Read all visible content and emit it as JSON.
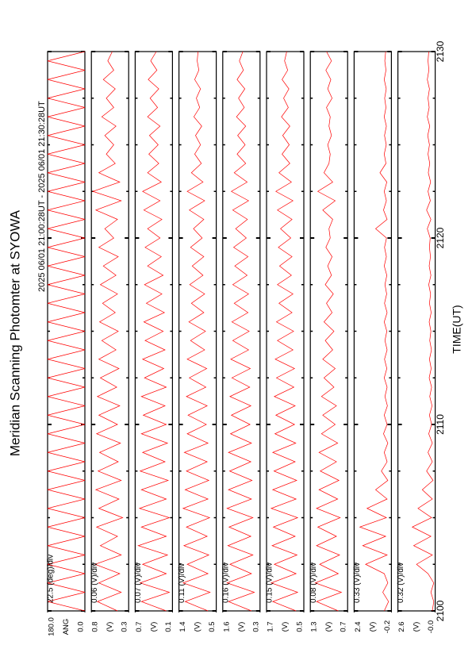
{
  "chart_data": {
    "type": "line",
    "title": "Meridian Scanning Photomter at SYOWA",
    "subtitle": "2025 06/01 21:00:28UT - 2025 06/01 21:30:28UT",
    "x_label": "TIME(UT)",
    "xlim": [
      2100,
      2130
    ],
    "xticks": [
      2100,
      2110,
      2120,
      2130
    ],
    "xminorticks": [
      2102.5,
      2105,
      2107.5,
      2112.5,
      2115,
      2117.5,
      2122.5,
      2125,
      2127.5
    ],
    "x": [
      2100,
      2100.5,
      2101,
      2101.5,
      2102,
      2102.5,
      2103,
      2103.5,
      2104,
      2104.5,
      2105,
      2105.5,
      2106,
      2106.5,
      2107,
      2107.5,
      2108,
      2108.5,
      2109,
      2109.5,
      2110,
      2110.5,
      2111,
      2111.5,
      2112,
      2112.5,
      2113,
      2113.5,
      2114,
      2114.5,
      2115,
      2115.5,
      2116,
      2116.5,
      2117,
      2117.5,
      2118,
      2118.5,
      2119,
      2119.5,
      2120,
      2120.5,
      2121,
      2121.5,
      2122,
      2122.5,
      2123,
      2123.5,
      2124,
      2124.5,
      2125,
      2125.5,
      2126,
      2126.5,
      2127,
      2127.5,
      2128,
      2128.5,
      2129,
      2129.5,
      2130
    ],
    "series": [
      {
        "unit": "ANG",
        "scale": "22.5 (deg)/div",
        "color": "#ff0000",
        "ylim": [
          0,
          180
        ],
        "yticks": [
          {
            "value": 180,
            "label": "180.0"
          },
          {
            "value": 0,
            "label": "0.0"
          }
        ],
        "values": [
          0,
          180,
          0,
          180,
          0,
          180,
          0,
          180,
          0,
          180,
          0,
          180,
          0,
          180,
          0,
          180,
          0,
          180,
          0,
          180,
          0,
          180,
          0,
          180,
          0,
          180,
          0,
          180,
          0,
          180,
          0,
          180,
          0,
          180,
          0,
          180,
          0,
          180,
          0,
          180,
          0,
          180,
          0,
          180,
          0,
          180,
          0,
          180,
          0,
          180,
          0,
          180,
          0,
          180,
          0,
          180,
          0,
          180,
          0,
          180,
          0
        ]
      },
      {
        "unit": "(V)",
        "scale": "0.06 (V)/div",
        "color": "#ff0000",
        "ylim": [
          0.3,
          0.8
        ],
        "yticks": [
          0.8,
          0.3
        ],
        "values": [
          0.45,
          0.72,
          0.4,
          0.7,
          0.42,
          0.75,
          0.4,
          0.68,
          0.45,
          0.73,
          0.38,
          0.7,
          0.43,
          0.74,
          0.4,
          0.71,
          0.44,
          0.69,
          0.41,
          0.73,
          0.45,
          0.7,
          0.42,
          0.72,
          0.46,
          0.68,
          0.43,
          0.7,
          0.47,
          0.66,
          0.44,
          0.69,
          0.48,
          0.65,
          0.45,
          0.68,
          0.47,
          0.64,
          0.44,
          0.7,
          0.5,
          0.62,
          0.45,
          0.74,
          0.4,
          0.78,
          0.42,
          0.7,
          0.48,
          0.6,
          0.5,
          0.62,
          0.47,
          0.66,
          0.5,
          0.6,
          0.48,
          0.64,
          0.5,
          0.58,
          0.52
        ]
      },
      {
        "unit": "(V)",
        "scale": "0.07 (V)/div",
        "color": "#ff0000",
        "ylim": [
          0.1,
          0.7
        ],
        "yticks": [
          0.7,
          0.1
        ],
        "values": [
          0.2,
          0.6,
          0.15,
          0.62,
          0.2,
          0.58,
          0.18,
          0.65,
          0.2,
          0.6,
          0.15,
          0.63,
          0.2,
          0.6,
          0.17,
          0.62,
          0.22,
          0.58,
          0.18,
          0.6,
          0.2,
          0.57,
          0.22,
          0.6,
          0.2,
          0.55,
          0.24,
          0.58,
          0.22,
          0.54,
          0.25,
          0.56,
          0.23,
          0.52,
          0.27,
          0.55,
          0.25,
          0.5,
          0.28,
          0.54,
          0.3,
          0.5,
          0.27,
          0.56,
          0.3,
          0.58,
          0.28,
          0.5,
          0.32,
          0.48,
          0.33,
          0.47,
          0.3,
          0.5,
          0.34,
          0.46,
          0.32,
          0.49,
          0.35,
          0.45,
          0.36
        ]
      },
      {
        "unit": "(V)",
        "scale": "0.11 (V)/div",
        "color": "#ff0000",
        "ylim": [
          0.5,
          1.4
        ],
        "yticks": [
          1.4,
          0.5
        ],
        "values": [
          0.7,
          1.25,
          0.65,
          1.3,
          0.7,
          1.2,
          0.68,
          1.28,
          0.72,
          1.22,
          0.66,
          1.3,
          0.7,
          1.25,
          0.68,
          1.22,
          0.72,
          1.27,
          0.7,
          1.2,
          0.74,
          1.18,
          0.72,
          1.22,
          0.75,
          1.15,
          0.73,
          1.2,
          0.78,
          1.12,
          0.76,
          1.16,
          0.8,
          1.1,
          0.78,
          1.14,
          0.82,
          1.08,
          0.8,
          1.12,
          0.84,
          1.05,
          0.8,
          1.15,
          0.78,
          1.2,
          0.82,
          1.1,
          0.86,
          1.02,
          0.88,
          1.0,
          0.85,
          1.04,
          0.9,
          0.98,
          0.88,
          1.02,
          0.92,
          0.96,
          0.94
        ]
      },
      {
        "unit": "(V)",
        "scale": "0.16 (V)/div",
        "color": "#ff0000",
        "ylim": [
          0.3,
          1.6
        ],
        "yticks": [
          1.6,
          0.3
        ],
        "values": [
          0.6,
          1.4,
          0.5,
          1.45,
          0.6,
          1.35,
          0.55,
          1.42,
          0.62,
          1.38,
          0.55,
          1.45,
          0.6,
          1.4,
          0.58,
          1.36,
          0.62,
          1.4,
          0.6,
          1.33,
          0.65,
          1.3,
          0.62,
          1.35,
          0.66,
          1.28,
          0.64,
          1.32,
          0.7,
          1.25,
          0.68,
          1.28,
          0.72,
          1.2,
          0.7,
          1.25,
          0.75,
          1.18,
          0.72,
          1.22,
          0.78,
          1.15,
          0.74,
          1.25,
          0.7,
          1.3,
          0.75,
          1.2,
          0.8,
          1.1,
          0.82,
          1.08,
          0.8,
          1.12,
          0.85,
          1.05,
          0.83,
          1.1,
          0.88,
          1.02,
          0.9
        ]
      },
      {
        "unit": "(V)",
        "scale": "0.15 (V)/div",
        "color": "#ff0000",
        "ylim": [
          0.5,
          1.7
        ],
        "yticks": [
          1.7,
          0.5
        ],
        "values": [
          0.75,
          1.5,
          0.7,
          1.55,
          0.75,
          1.45,
          0.72,
          1.52,
          0.78,
          1.48,
          0.7,
          1.55,
          0.75,
          1.5,
          0.73,
          1.46,
          0.78,
          1.5,
          0.76,
          1.43,
          0.8,
          1.4,
          0.78,
          1.45,
          0.82,
          1.38,
          0.8,
          1.42,
          0.85,
          1.35,
          0.83,
          1.38,
          0.88,
          1.3,
          0.85,
          1.35,
          0.9,
          1.28,
          0.88,
          1.32,
          0.92,
          1.25,
          0.88,
          1.35,
          0.85,
          1.4,
          0.9,
          1.3,
          0.95,
          1.2,
          0.97,
          1.18,
          0.95,
          1.22,
          1.0,
          1.15,
          0.98,
          1.2,
          1.02,
          1.12,
          1.05
        ]
      },
      {
        "unit": "(V)",
        "scale": "0.08 (V)/div",
        "color": "#ff0000",
        "ylim": [
          0.7,
          1.3
        ],
        "yticks": [
          1.3,
          0.7
        ],
        "values": [
          0.85,
          1.2,
          0.8,
          1.22,
          0.85,
          1.15,
          0.83,
          1.2,
          0.88,
          1.18,
          0.82,
          1.2,
          0.86,
          1.16,
          0.84,
          1.14,
          0.88,
          1.16,
          0.86,
          1.12,
          0.9,
          1.1,
          0.88,
          1.12,
          0.92,
          1.08,
          0.9,
          1.1,
          0.94,
          1.06,
          0.92,
          1.08,
          0.95,
          1.04,
          0.93,
          1.06,
          0.96,
          1.02,
          0.95,
          1.05,
          0.98,
          1.0,
          0.94,
          1.1,
          0.9,
          1.18,
          0.94,
          1.08,
          1.0,
          0.98,
          1.02,
          0.96,
          1.0,
          0.98,
          1.04,
          0.95,
          1.02,
          0.97,
          1.05,
          0.96,
          1.04
        ]
      },
      {
        "unit": "(V)",
        "scale": "0.33 (V)/div",
        "color": "#ff0000",
        "ylim": [
          -0.2,
          2.4
        ],
        "yticks": [
          2.4,
          -0.2
        ],
        "values": [
          0.3,
          0.0,
          0.4,
          0.05,
          0.3,
          1.6,
          0.1,
          1.8,
          0.2,
          2.0,
          0.15,
          1.5,
          0.1,
          0.9,
          0.05,
          0.5,
          0.1,
          0.3,
          0.05,
          0.35,
          0.1,
          0.3,
          0.08,
          0.25,
          0.1,
          0.3,
          0.12,
          0.28,
          0.1,
          0.25,
          0.12,
          0.3,
          0.1,
          0.28,
          0.13,
          0.25,
          0.12,
          0.3,
          0.15,
          0.28,
          0.14,
          0.9,
          0.1,
          0.35,
          0.15,
          0.3,
          0.12,
          0.6,
          0.18,
          0.3,
          0.16,
          0.28,
          0.15,
          0.3,
          0.18,
          0.27,
          0.16,
          0.3,
          0.18,
          0.26,
          0.2
        ]
      },
      {
        "unit": "(V)",
        "scale": "0.32 (V)/div",
        "color": "#ff0000",
        "ylim": [
          0,
          2.6
        ],
        "yticks": [
          2.6,
          {
            "value": 0,
            "label": "-0.0"
          }
        ],
        "values": [
          0.2,
          0.1,
          0.3,
          0.1,
          0.5,
          1.3,
          0.2,
          1.5,
          0.3,
          1.6,
          0.25,
          1.2,
          0.2,
          0.9,
          0.15,
          0.6,
          0.2,
          0.5,
          0.2,
          0.45,
          0.25,
          0.4,
          0.22,
          0.38,
          0.25,
          0.42,
          0.28,
          0.4,
          0.26,
          0.38,
          0.3,
          0.42,
          0.28,
          0.4,
          0.32,
          0.45,
          0.3,
          0.42,
          0.33,
          0.4,
          0.35,
          0.55,
          0.3,
          0.6,
          0.34,
          0.5,
          0.32,
          0.48,
          0.38,
          0.5,
          0.4,
          0.52,
          0.38,
          0.55,
          0.42,
          0.5,
          0.4,
          0.55,
          0.44,
          0.5,
          0.45
        ]
      }
    ]
  }
}
